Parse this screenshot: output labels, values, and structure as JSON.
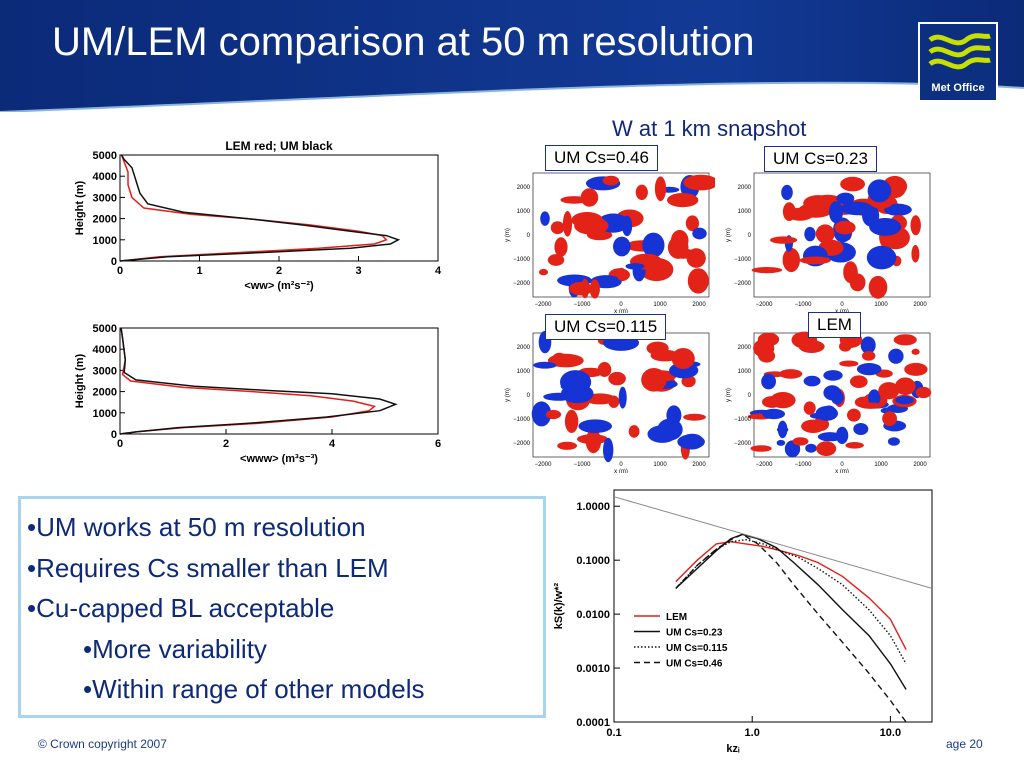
{
  "slide": {
    "title": "UM/LEM comparison at 50 m resolution",
    "logo_text": "Met Office",
    "snapshot_title": "W at 1 km snapshot",
    "footer_left": "© Crown copyright 2007",
    "footer_right": "age 20",
    "colors": {
      "header_blue": "#0d2f7f",
      "text_blue": "#0d2a78",
      "bullet_border": "#a9d4ee"
    }
  },
  "panels": [
    {
      "label": "UM Cs=0.46"
    },
    {
      "label": "UM Cs=0.23"
    },
    {
      "label": "UM Cs=0.115"
    },
    {
      "label": "LEM"
    }
  ],
  "snapshot_axes": {
    "xlabel": "x (m)",
    "ylabel": "y (m)",
    "xticks": [
      "−2000",
      "−1000",
      "0",
      "1000",
      "2000"
    ],
    "yticks": [
      "2000",
      "1000",
      "0",
      "−1000",
      "−2000"
    ]
  },
  "bullets": [
    {
      "text": "•UM works at 50 m resolution",
      "level": 1
    },
    {
      "text": "•Requires Cs smaller than LEM",
      "level": 1
    },
    {
      "text": "•Cu-capped BL acceptable",
      "level": 1
    },
    {
      "text": "•More variability",
      "level": 2
    },
    {
      "text": "•Within range of other models",
      "level": 2
    }
  ],
  "chart_data": [
    {
      "type": "line",
      "title": "LEM red; UM black",
      "xlabel": "<ww> (m²s⁻²)",
      "ylabel": "Height (m)",
      "xlim": [
        0,
        4
      ],
      "ylim": [
        0,
        5000
      ],
      "xticks": [
        "0",
        "1",
        "2",
        "3",
        "4"
      ],
      "yticks": [
        "0",
        "1000",
        "2000",
        "3000",
        "4000",
        "5000"
      ],
      "series": [
        {
          "name": "LEM",
          "color": "#e0201a",
          "x": [
            0,
            0.5,
            1.5,
            2.5,
            3.2,
            3.35,
            3.3,
            3.0,
            2.4,
            1.6,
            0.9,
            0.3,
            0.15,
            0.1,
            0.1,
            0.05,
            0.02
          ],
          "y": [
            0,
            200,
            400,
            600,
            800,
            1000,
            1200,
            1400,
            1700,
            2000,
            2200,
            2500,
            3000,
            3600,
            4200,
            4700,
            5000
          ]
        },
        {
          "name": "UM",
          "color": "#111111",
          "x": [
            0,
            0.6,
            1.8,
            2.9,
            3.4,
            3.5,
            3.35,
            2.9,
            2.3,
            1.6,
            0.8,
            0.35,
            0.25,
            0.2,
            0.15,
            0.05,
            0.02
          ],
          "y": [
            0,
            200,
            400,
            600,
            800,
            1000,
            1200,
            1400,
            1700,
            2000,
            2300,
            2700,
            3200,
            3800,
            4400,
            4800,
            5000
          ]
        }
      ]
    },
    {
      "type": "line",
      "title": "",
      "xlabel": "<www> (m³s⁻³)",
      "ylabel": "Height (m)",
      "xlim": [
        0,
        6
      ],
      "ylim": [
        0,
        5000
      ],
      "xticks": [
        "0",
        "2",
        "4",
        "6"
      ],
      "yticks": [
        "0",
        "1000",
        "2000",
        "3000",
        "4000",
        "5000"
      ],
      "series": [
        {
          "name": "LEM",
          "color": "#e0201a",
          "x": [
            0,
            0.3,
            1.2,
            2.6,
            4.0,
            4.7,
            4.8,
            4.4,
            3.6,
            2.5,
            1.2,
            0.2,
            0.05,
            0.1,
            0.05,
            0.02
          ],
          "y": [
            0,
            100,
            300,
            500,
            800,
            1100,
            1300,
            1550,
            1800,
            2000,
            2200,
            2500,
            2800,
            3500,
            4500,
            5000
          ]
        },
        {
          "name": "UM",
          "color": "#111111",
          "x": [
            0,
            0.3,
            1.1,
            2.4,
            3.9,
            4.9,
            5.2,
            4.9,
            4.0,
            2.8,
            1.4,
            0.3,
            0.08,
            0.1,
            0.05,
            0.02
          ],
          "y": [
            0,
            100,
            300,
            500,
            800,
            1100,
            1400,
            1650,
            1900,
            2050,
            2250,
            2550,
            2900,
            3500,
            4500,
            5000
          ]
        }
      ]
    },
    {
      "type": "line",
      "title": "",
      "xlabel": "kzᵢ",
      "ylabel": "kS(k)/w*²",
      "xscale": "log",
      "yscale": "log",
      "xlim": [
        0.1,
        20
      ],
      "ylim": [
        0.0001,
        2
      ],
      "xticks": [
        "0.1",
        "1.0",
        "10.0"
      ],
      "yticks": [
        "0.0001",
        "0.0010",
        "0.0100",
        "0.1000",
        "1.0000"
      ],
      "legend": [
        "LEM",
        "UM Cs=0.23",
        "UM Cs=0.115",
        "UM Cs=0.46"
      ],
      "legend_position": "lower-left",
      "series": [
        {
          "name": "LEM",
          "color": "#e0201a",
          "dash": "solid",
          "x": [
            0.28,
            0.4,
            0.55,
            0.7,
            0.9,
            1.2,
            1.6,
            2.2,
            3,
            4.5,
            7,
            10,
            13
          ],
          "y": [
            0.04,
            0.1,
            0.2,
            0.22,
            0.2,
            0.18,
            0.15,
            0.12,
            0.09,
            0.05,
            0.02,
            0.008,
            0.0022
          ]
        },
        {
          "name": "UM Cs=0.23",
          "color": "#111111",
          "dash": "solid",
          "x": [
            0.28,
            0.4,
            0.55,
            0.7,
            0.85,
            1.1,
            1.5,
            2,
            3,
            4.5,
            7,
            10,
            13
          ],
          "y": [
            0.03,
            0.07,
            0.15,
            0.25,
            0.3,
            0.25,
            0.17,
            0.09,
            0.035,
            0.012,
            0.004,
            0.0012,
            0.0004
          ]
        },
        {
          "name": "UM Cs=0.115",
          "color": "#111111",
          "dash": "dotted",
          "x": [
            0.28,
            0.4,
            0.55,
            0.7,
            0.9,
            1.2,
            1.6,
            2.2,
            3,
            4.5,
            7,
            10,
            13
          ],
          "y": [
            0.03,
            0.08,
            0.16,
            0.22,
            0.24,
            0.2,
            0.15,
            0.11,
            0.07,
            0.035,
            0.012,
            0.004,
            0.0012
          ]
        },
        {
          "name": "UM Cs=0.46",
          "color": "#111111",
          "dash": "dashed",
          "x": [
            0.28,
            0.4,
            0.55,
            0.7,
            0.85,
            1.1,
            1.5,
            2,
            3,
            4.5,
            7,
            10,
            13
          ],
          "y": [
            0.03,
            0.08,
            0.16,
            0.24,
            0.3,
            0.2,
            0.09,
            0.035,
            0.01,
            0.003,
            0.0008,
            0.00025,
            0.0001
          ]
        },
        {
          "name": "",
          "color": "#888888",
          "dash": "solid",
          "x": [
            0.1,
            20
          ],
          "y": [
            1.5,
            0.03
          ]
        }
      ]
    }
  ]
}
